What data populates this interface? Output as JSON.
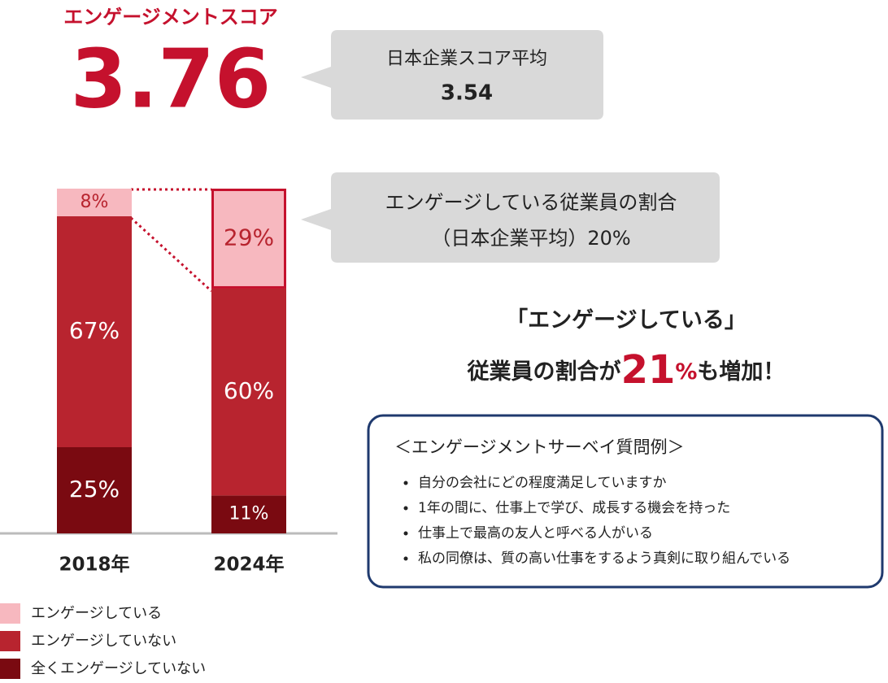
{
  "score": {
    "label": "エンゲージメントスコア",
    "value": "3.76",
    "average_label": "日本企業スコア平均",
    "average_value": "3.54"
  },
  "chart_data": {
    "type": "stacked_bar",
    "categories": [
      "2018年",
      "2024年"
    ],
    "ylim": [
      0,
      100
    ],
    "series": [
      {
        "name": "エンゲージしている",
        "color": "#f7b8bf",
        "values": [
          8,
          29
        ],
        "value_labels": [
          "8%",
          "29%"
        ]
      },
      {
        "name": "エンゲージしていない",
        "color": "#b8242f",
        "values": [
          67,
          60
        ],
        "value_labels": [
          "67%",
          "60%"
        ]
      },
      {
        "name": "全くエンゲージしていない",
        "color": "#7a0a11",
        "values": [
          25,
          11
        ],
        "value_labels": [
          "25%",
          "11%"
        ]
      }
    ]
  },
  "callout": {
    "line1": "エンゲージしている従業員の割合",
    "line2": "（日本企業平均）20%"
  },
  "headline": {
    "line1": "「エンゲージしている」",
    "prefix": "従業員の割合が",
    "number": "21",
    "unit": "%",
    "suffix": "も増加！"
  },
  "survey": {
    "title": "＜エンゲージメントサーベイ質問例＞",
    "items": [
      "自分の会社にどの程度満足していますか",
      "1年の間に、仕事上で学び、成長する機会を持った",
      "仕事上で最高の友人と呼べる人がいる",
      "私の同僚は、質の高い仕事をするよう真剣に取り組んでいる"
    ]
  }
}
